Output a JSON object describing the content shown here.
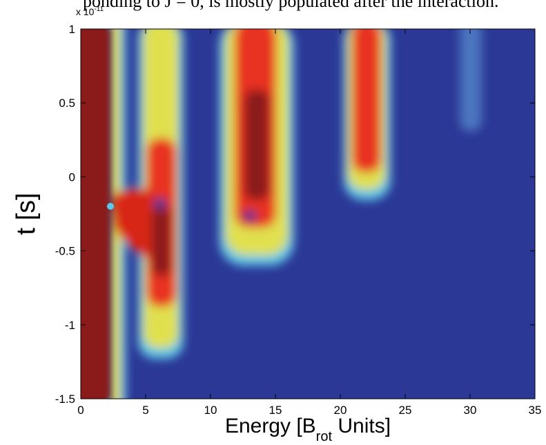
{
  "caption_fragment": "ponding to J = 0, is mostly populated after the interaction.",
  "chart_data": {
    "type": "heatmap",
    "x_label": {
      "text": "Energy [B",
      "subscript": "rot",
      "text_after": " Units]"
    },
    "y_label": "t [s]",
    "y_multiplier": {
      "base": "x 10",
      "exponent": "-11"
    },
    "xlim": [
      0,
      35
    ],
    "xticks": [
      0,
      5,
      10,
      15,
      20,
      25,
      30,
      35
    ],
    "ylim": [
      -1.5,
      1
    ],
    "yticks": [
      -1.5,
      -1,
      -0.5,
      0,
      0.5,
      1
    ]
  }
}
